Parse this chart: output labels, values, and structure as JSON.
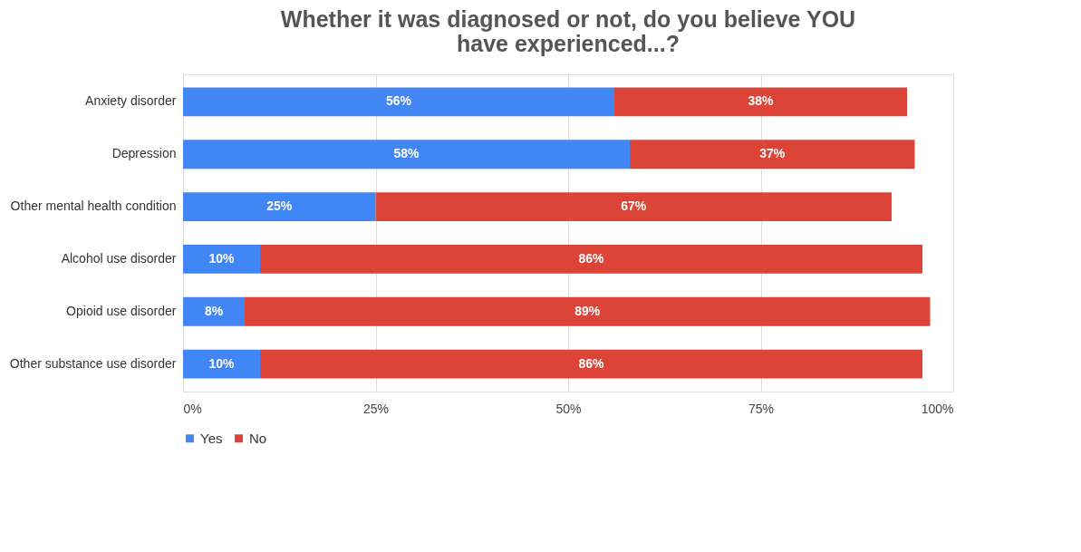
{
  "chart_data": {
    "type": "bar",
    "orientation": "horizontal",
    "stacked": true,
    "title": "Whether it was diagnosed or not, do you believe YOU have experienced...?",
    "categories": [
      "Anxiety disorder",
      "Depression",
      "Other mental health condition",
      "Alcohol use disorder",
      "Opioid use disorder",
      "Other substance use disorder"
    ],
    "series": [
      {
        "name": "Yes",
        "color": "#4285f4",
        "values": [
          56,
          58,
          25,
          10,
          8,
          10
        ],
        "value_labels": [
          "56%",
          "58%",
          "25%",
          "10%",
          "8%",
          "10%"
        ]
      },
      {
        "name": "No",
        "color": "#db4437",
        "values": [
          38,
          37,
          67,
          86,
          89,
          86
        ],
        "value_labels": [
          "38%",
          "37%",
          "67%",
          "86%",
          "89%",
          "86%"
        ]
      }
    ],
    "xlim": [
      0,
      100
    ],
    "xticks": [
      {
        "value": 0,
        "label": "0%"
      },
      {
        "value": 25,
        "label": "25%"
      },
      {
        "value": 50,
        "label": "50%"
      },
      {
        "value": 75,
        "label": "75%"
      },
      {
        "value": 100,
        "label": "100%"
      }
    ],
    "grid": "x",
    "legend": "bottom"
  }
}
